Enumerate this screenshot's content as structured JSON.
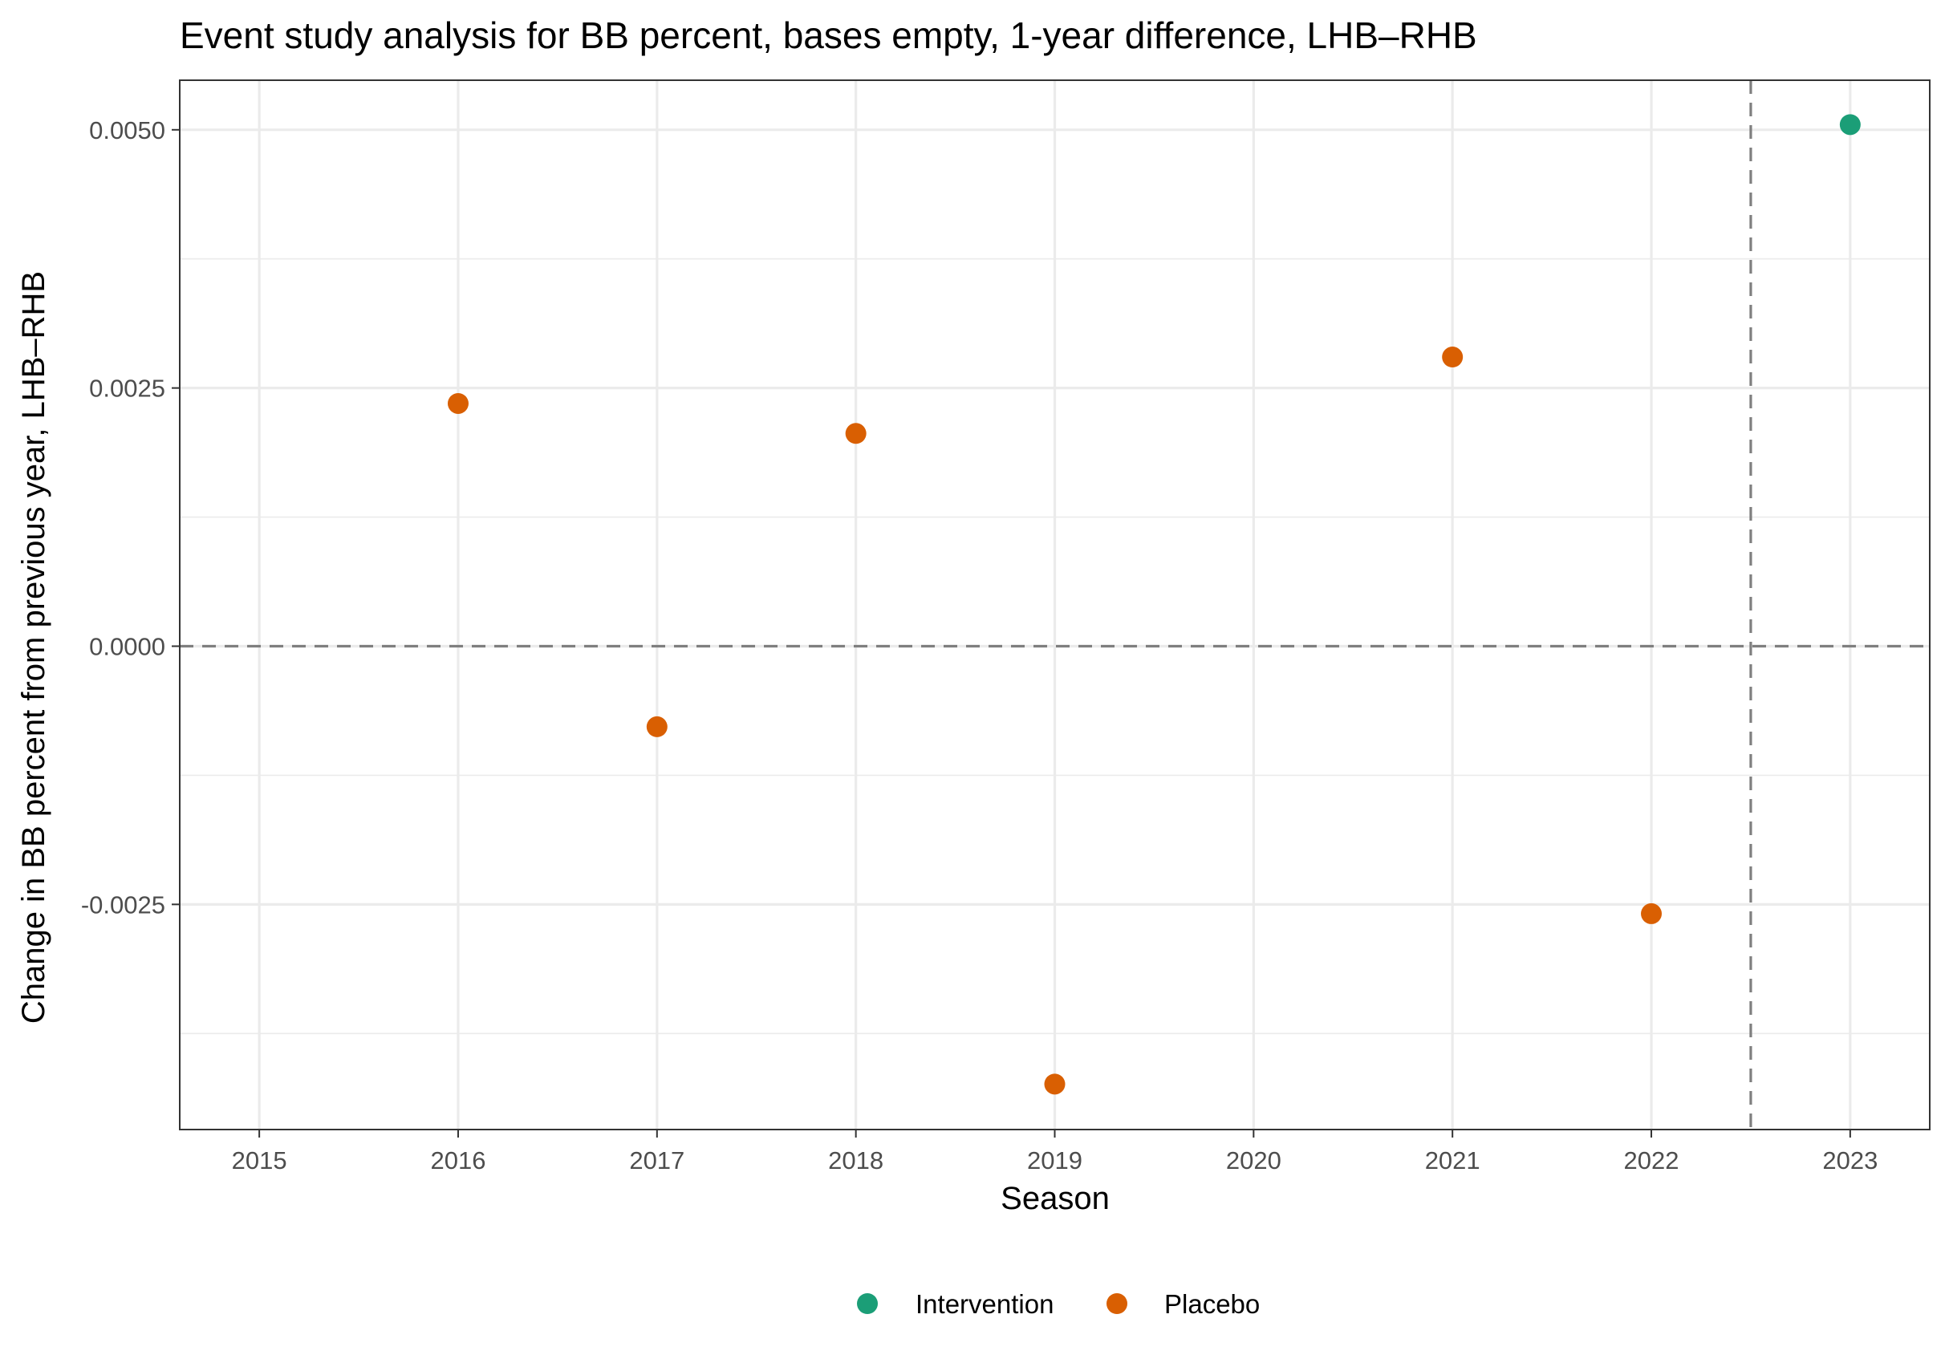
{
  "chart_data": {
    "type": "scatter",
    "title": "Event study analysis for BB percent, bases empty, 1-year difference, LHB–RHB",
    "xlabel": "Season",
    "ylabel": "Change in BB percent from previous year, LHB–RHB",
    "xlim": [
      2014.6,
      2023.4
    ],
    "ylim": [
      -0.00468,
      0.00548
    ],
    "x_ticks": [
      2015,
      2016,
      2017,
      2018,
      2019,
      2020,
      2021,
      2022,
      2023
    ],
    "y_ticks": [
      -0.0025,
      0.0,
      0.0025,
      0.005
    ],
    "y_tick_labels": [
      "-0.0025",
      "0.0000",
      "0.0025",
      "0.0050"
    ],
    "grid": true,
    "reference_lines": {
      "horizontal": 0.0,
      "vertical": 2022.5
    },
    "legend_position": "bottom",
    "series": [
      {
        "name": "Intervention",
        "color": "#1b9e77",
        "x": [
          2023
        ],
        "y": [
          0.00505
        ]
      },
      {
        "name": "Placebo",
        "color": "#d95f02",
        "x": [
          2016,
          2017,
          2018,
          2019,
          2021,
          2022
        ],
        "y": [
          0.00235,
          -0.00078,
          0.00206,
          -0.00424,
          0.0028,
          -0.00259
        ]
      }
    ]
  }
}
